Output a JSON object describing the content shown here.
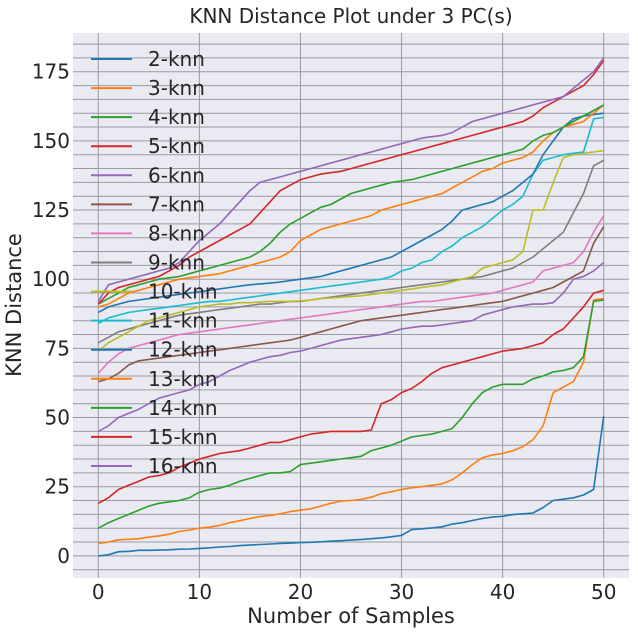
{
  "chart_data": {
    "type": "line",
    "title": "KNN Distance Plot under 3 PC(s)",
    "xlabel": "Number of Samples",
    "ylabel": "KNN Distance",
    "xlim": [
      -2.5,
      52.5
    ],
    "ylim": [
      -8,
      189
    ],
    "xticks": [
      0,
      10,
      20,
      30,
      40,
      50
    ],
    "yticks": [
      0,
      25,
      50,
      75,
      100,
      125,
      150,
      175
    ],
    "grid": true,
    "grid_minor_y_step": 5,
    "background": "#eaeaf2",
    "legend_position": "upper-left",
    "x": [
      0,
      1,
      2,
      3,
      4,
      5,
      6,
      7,
      8,
      9,
      10,
      11,
      12,
      13,
      14,
      15,
      16,
      17,
      18,
      19,
      20,
      21,
      22,
      23,
      24,
      25,
      26,
      27,
      28,
      29,
      30,
      31,
      32,
      33,
      34,
      35,
      36,
      37,
      38,
      39,
      40,
      41,
      42,
      43,
      44,
      45,
      46,
      47,
      48,
      49,
      50
    ],
    "series": [
      {
        "name": "2-knn",
        "color": "#1f77b4",
        "values": [
          0,
          0.4,
          1.5,
          1.6,
          2,
          2,
          2.1,
          2.2,
          2.4,
          2.5,
          2.7,
          2.9,
          3.2,
          3.4,
          3.7,
          3.9,
          4.1,
          4.3,
          4.5,
          4.6,
          4.8,
          4.9,
          5.1,
          5.3,
          5.5,
          5.7,
          5.9,
          6.2,
          6.5,
          6.9,
          7.4,
          9.5,
          9.8,
          10.1,
          10.5,
          11.5,
          12,
          12.8,
          13.5,
          14,
          14.3,
          14.9,
          15.2,
          15.5,
          17.5,
          20,
          20.5,
          21,
          22,
          24,
          50.5
        ]
      },
      {
        "name": "3-knn",
        "color": "#ff7f0e",
        "values": [
          4.5,
          5,
          5.8,
          6,
          6.2,
          6.8,
          7.2,
          7.8,
          8.8,
          9.3,
          10,
          10.4,
          11,
          12,
          12.7,
          13.5,
          14.2,
          14.6,
          15.2,
          16,
          16.5,
          17,
          18,
          19,
          19.8,
          20,
          20.4,
          21.2,
          22.5,
          23.2,
          24,
          24.6,
          25,
          25.5,
          26,
          27.5,
          30,
          33,
          35.5,
          36.5,
          37,
          38,
          39.5,
          42,
          47,
          59,
          61,
          63,
          70,
          92.5,
          93
        ]
      },
      {
        "name": "4-knn",
        "color": "#2ca02c",
        "values": [
          10,
          12,
          13.5,
          15,
          16.5,
          18,
          19,
          19.5,
          20,
          21,
          23,
          24,
          24.5,
          25.5,
          27,
          28,
          29,
          30,
          30,
          30.5,
          33,
          33.5,
          34,
          34.5,
          35,
          35.5,
          36,
          38,
          39,
          40,
          41.5,
          43,
          43.5,
          44,
          45,
          46,
          50,
          55,
          59,
          61,
          62,
          62,
          62,
          64,
          65,
          66.5,
          67,
          68,
          72,
          92,
          92.5
        ]
      },
      {
        "name": "5-knn",
        "color": "#d62728",
        "values": [
          19,
          21,
          24,
          25.5,
          27,
          28.5,
          29,
          30,
          32,
          33.5,
          35,
          36,
          37,
          37.5,
          38,
          39,
          40,
          41,
          41,
          42,
          43,
          44,
          44.5,
          45,
          45,
          45,
          45,
          45.5,
          55,
          56.5,
          59,
          60.5,
          63,
          66,
          68,
          69,
          70,
          71,
          72,
          73,
          74,
          74.5,
          75,
          76,
          77,
          80,
          82,
          86,
          90,
          95,
          96
        ]
      },
      {
        "name": "6-knn",
        "color": "#9467bd",
        "values": [
          45,
          47,
          50,
          51.5,
          53,
          55,
          57,
          58,
          59,
          60,
          62,
          63,
          65,
          67,
          68.5,
          70,
          71,
          72,
          72.5,
          73.5,
          74,
          75,
          76,
          77,
          78,
          78.5,
          79,
          79.5,
          80,
          81,
          82,
          82.5,
          83,
          83,
          83.5,
          84,
          84.5,
          85,
          87,
          88,
          89,
          90,
          90.5,
          91,
          91,
          91.5,
          95,
          100,
          101,
          103,
          106
        ]
      },
      {
        "name": "7-knn",
        "color": "#8c564b",
        "values": [
          63,
          64,
          66,
          69,
          70.5,
          71,
          71.5,
          72,
          72.5,
          73,
          73.5,
          74,
          74.5,
          75,
          75.5,
          76,
          76.5,
          77,
          77.5,
          78,
          79,
          80,
          81,
          82,
          83,
          84,
          85,
          85.5,
          86,
          86.5,
          87,
          87.5,
          88,
          88.5,
          89,
          89.5,
          90,
          90.5,
          91,
          91.5,
          92,
          93,
          94,
          95,
          96,
          97,
          99,
          101,
          103,
          113,
          119
        ]
      },
      {
        "name": "8-knn",
        "color": "#e377c2",
        "values": [
          66,
          70,
          73,
          75,
          76,
          77,
          78,
          79,
          80,
          80.5,
          81,
          81.5,
          82,
          82.5,
          83,
          83.5,
          84,
          84.5,
          85,
          85.5,
          86,
          86.5,
          87,
          87.5,
          88,
          88.5,
          89,
          89.5,
          90,
          90.5,
          91,
          91.5,
          92,
          92,
          92.5,
          93,
          93.5,
          94,
          94.5,
          95,
          96,
          97,
          98,
          99,
          103,
          104,
          105,
          106,
          110,
          117,
          123
        ]
      },
      {
        "name": "9-knn",
        "color": "#7f7f7f",
        "values": [
          77,
          79,
          81,
          82,
          83,
          84,
          85,
          86,
          87,
          87.5,
          88,
          88.5,
          89,
          89.5,
          90,
          90.5,
          91,
          91,
          91.5,
          92,
          92,
          92.5,
          93,
          93.5,
          94,
          94.5,
          95,
          95.5,
          96,
          96.5,
          97,
          97.5,
          98,
          98.5,
          99,
          99.5,
          100,
          100.5,
          101,
          102,
          103,
          104,
          106,
          108,
          111,
          114,
          117,
          124,
          131,
          141,
          143
        ]
      },
      {
        "name": "10-knn",
        "color": "#bcbd22",
        "values": [
          74,
          77,
          79,
          81,
          83,
          85,
          86,
          87,
          88,
          89,
          90,
          90.5,
          91,
          91,
          91.5,
          91.5,
          91.8,
          92,
          92,
          92,
          92.2,
          92.5,
          93,
          93.2,
          93.5,
          93.8,
          94,
          94.5,
          95,
          95.5,
          96,
          96.5,
          97,
          97.5,
          98,
          99,
          100,
          101,
          104,
          105,
          106,
          107,
          110,
          125,
          125,
          135,
          144,
          145,
          145.5,
          146,
          146.5
        ]
      },
      {
        "name": "11-knn",
        "color": "#17becf",
        "values": [
          84,
          86,
          87,
          88,
          88.5,
          89,
          89.5,
          90,
          90.5,
          91,
          91.5,
          92,
          92,
          92.5,
          93,
          93.5,
          94,
          94.5,
          95,
          95.5,
          96,
          96.5,
          97,
          97.5,
          98,
          98.5,
          99,
          99.5,
          100,
          101,
          103,
          104,
          106,
          107,
          110,
          112,
          115,
          117,
          119,
          122,
          125,
          127,
          130,
          138,
          143,
          144,
          145,
          145.5,
          146,
          158,
          158.5
        ]
      },
      {
        "name": "12-knn",
        "color": "#1f77b4",
        "values": [
          88,
          90,
          91,
          92,
          92.5,
          93,
          93.5,
          94,
          94.5,
          95,
          95.5,
          96,
          96.5,
          97,
          97.5,
          98,
          98.3,
          98.6,
          99,
          99.5,
          100,
          100.5,
          101,
          102,
          103,
          104,
          105,
          106,
          107,
          108,
          110,
          112,
          114,
          116,
          118,
          121,
          125,
          126,
          127,
          128,
          130,
          132,
          135,
          138,
          145,
          150,
          155,
          158,
          159,
          159.5,
          160
        ]
      },
      {
        "name": "13-knn",
        "color": "#ff7f0e",
        "values": [
          90,
          91,
          93,
          95,
          96,
          97,
          98,
          99,
          100,
          100.5,
          101,
          101.5,
          102,
          103,
          104,
          105,
          106,
          107,
          108,
          110,
          114,
          116,
          118,
          119,
          120,
          121,
          122,
          123,
          125,
          126,
          127,
          128,
          129,
          130,
          131,
          133,
          135,
          137,
          139,
          140,
          142,
          143,
          144,
          146,
          150,
          153,
          155,
          156,
          157,
          160,
          163
        ]
      },
      {
        "name": "14-knn",
        "color": "#2ca02c",
        "values": [
          91,
          93,
          95,
          97,
          98,
          99,
          100,
          100.5,
          101,
          102,
          103,
          104,
          105,
          106,
          107,
          108,
          110,
          113,
          117,
          120,
          122,
          124,
          126,
          127,
          129,
          131,
          132,
          133,
          134,
          135,
          135.5,
          136,
          137,
          138,
          139,
          140,
          141,
          142,
          143,
          144,
          145,
          146,
          147,
          150,
          152,
          153,
          155,
          157,
          159,
          161,
          163
        ]
      },
      {
        "name": "15-knn",
        "color": "#d62728",
        "values": [
          91,
          95,
          97,
          98,
          99,
          100,
          101,
          103,
          105,
          108,
          110,
          112,
          114,
          116,
          118,
          120,
          124,
          128,
          132,
          134,
          136,
          137,
          138,
          138.5,
          139,
          140,
          141,
          142,
          143,
          144,
          145,
          146,
          147,
          148,
          149,
          150,
          151,
          152,
          153,
          154,
          155,
          156,
          157,
          159,
          162,
          164,
          166,
          168,
          170,
          174,
          179
        ]
      },
      {
        "name": "16-knn",
        "color": "#9467bd",
        "values": [
          92,
          98,
          99,
          100,
          101,
          102,
          103,
          104,
          106,
          110,
          114,
          117,
          120,
          124,
          128,
          132,
          135,
          136,
          137,
          138,
          139,
          140,
          141,
          142,
          143,
          144,
          145,
          146,
          147,
          148,
          149,
          150,
          151,
          151.5,
          152,
          153,
          155,
          157,
          158,
          159,
          160,
          161,
          162,
          163,
          164,
          165,
          166,
          169,
          172,
          175,
          180
        ]
      }
    ]
  }
}
